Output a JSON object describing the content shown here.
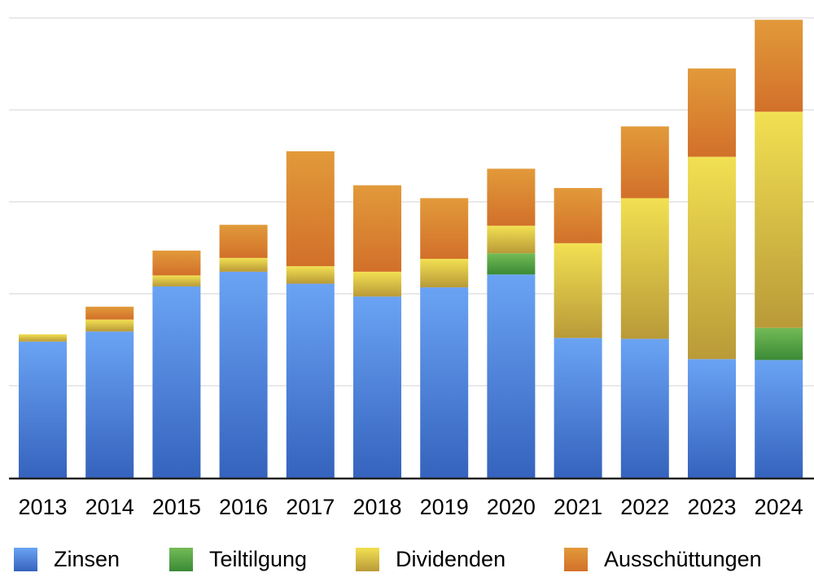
{
  "chart_data": {
    "type": "bar",
    "stacked": true,
    "title": "",
    "xlabel": "",
    "ylabel": "",
    "ylim": [
      0,
      500
    ],
    "y_gridlines": [
      0,
      100,
      200,
      300,
      400,
      500
    ],
    "y_tick_labels_visible": false,
    "grid": true,
    "legend_position": "bottom",
    "categories": [
      "2013",
      "2014",
      "2015",
      "2016",
      "2017",
      "2018",
      "2019",
      "2020",
      "2021",
      "2022",
      "2023",
      "2024"
    ],
    "series": [
      {
        "name": "Zinsen",
        "color": "#4a86e0",
        "color_top": "#6aa3f4",
        "color_bottom": "#3563bd",
        "values": [
          148,
          159,
          208,
          224,
          211,
          197,
          207,
          221,
          152,
          151,
          129,
          128
        ]
      },
      {
        "name": "Teiltilgung",
        "color": "#55a74a",
        "color_top": "#74bb56",
        "color_bottom": "#3a8a36",
        "values": [
          0,
          0,
          0,
          0,
          0,
          0,
          0,
          23,
          0,
          0,
          0,
          35
        ]
      },
      {
        "name": "Dividenden",
        "color": "#dcc443",
        "color_top": "#f2e052",
        "color_bottom": "#b99a38",
        "values": [
          8,
          13,
          12,
          15,
          19,
          27,
          31,
          30,
          103,
          153,
          220,
          235
        ]
      },
      {
        "name": "Ausschüttungen",
        "color": "#d9822e",
        "color_top": "#e29a3a",
        "color_bottom": "#d2702a",
        "values": [
          0,
          14,
          27,
          36,
          125,
          94,
          66,
          62,
          60,
          78,
          96,
          100
        ]
      }
    ]
  }
}
